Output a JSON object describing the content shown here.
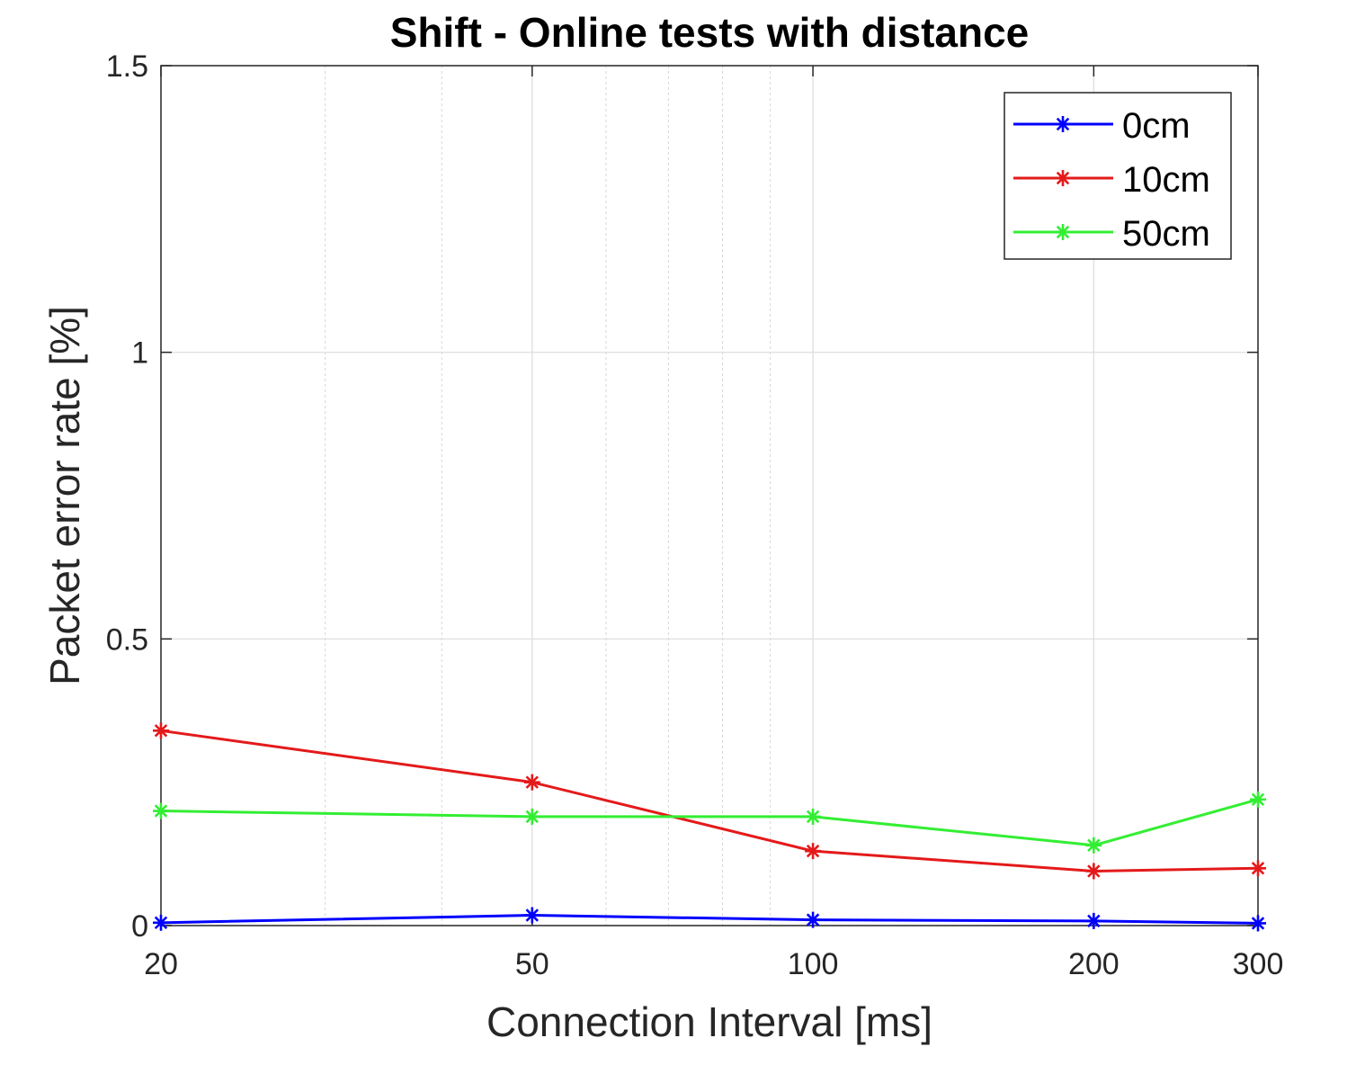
{
  "chart_data": {
    "type": "line",
    "title": "Shift - Online tests with distance",
    "xlabel": "Connection Interval [ms]",
    "ylabel": "Packet error rate [%]",
    "xscale": "log",
    "xlim": [
      20,
      300
    ],
    "ylim": [
      0,
      1.5
    ],
    "x": [
      20,
      50,
      100,
      200,
      300
    ],
    "xticks": [
      20,
      50,
      100,
      200,
      300
    ],
    "xtick_labels": [
      "20",
      "50",
      "100",
      "200",
      "300"
    ],
    "yticks": [
      0,
      0.5,
      1,
      1.5
    ],
    "ytick_labels": [
      "0",
      "0.5",
      "1",
      "1.5"
    ],
    "grid": true,
    "minor_grid_x": true,
    "legend_position": "top-right",
    "marker": "asterisk",
    "series": [
      {
        "name": "0cm",
        "color": "#0000ff",
        "values": [
          0.005,
          0.018,
          0.01,
          0.008,
          0.004
        ]
      },
      {
        "name": "10cm",
        "color": "#e41a1a",
        "values": [
          0.34,
          0.25,
          0.13,
          0.095,
          0.1
        ]
      },
      {
        "name": "50cm",
        "color": "#33ee33",
        "values": [
          0.2,
          0.19,
          0.19,
          0.14,
          0.22
        ]
      }
    ]
  }
}
